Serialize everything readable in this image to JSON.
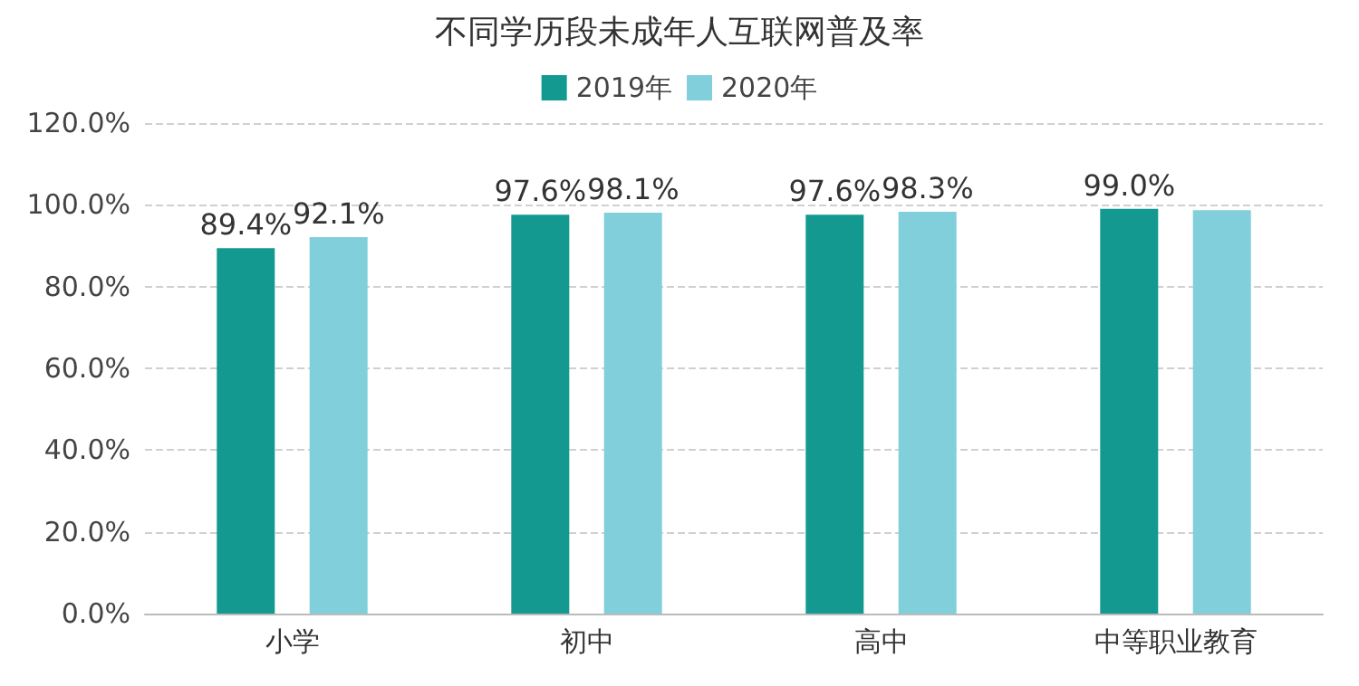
{
  "chart_data": {
    "type": "bar",
    "title": "不同学历段未成年人互联网普及率",
    "categories": [
      "小学",
      "初中",
      "高中",
      "中等职业教育"
    ],
    "series": [
      {
        "name": "2019年",
        "color": "#13998f",
        "values": [
          89.4,
          97.6,
          97.6,
          99.0
        ],
        "value_labels": [
          "89.4%",
          "97.6%",
          "97.6%",
          "99.0%"
        ]
      },
      {
        "name": "2020年",
        "color": "#80cfdb",
        "values": [
          92.1,
          98.1,
          98.3,
          98.7
        ],
        "value_labels": [
          "92.1%",
          "98.1%",
          "98.3%",
          null
        ]
      }
    ],
    "ylim": [
      0,
      120
    ],
    "yticks": [
      {
        "value": 0,
        "label": "0.0%"
      },
      {
        "value": 20,
        "label": "20.0%"
      },
      {
        "value": 40,
        "label": "40.0%"
      },
      {
        "value": 60,
        "label": "60.0%"
      },
      {
        "value": 80,
        "label": "80.0%"
      },
      {
        "value": 100,
        "label": "100.0%"
      },
      {
        "value": 120,
        "label": "120.0%"
      }
    ],
    "grid": "y",
    "legend": "top"
  }
}
